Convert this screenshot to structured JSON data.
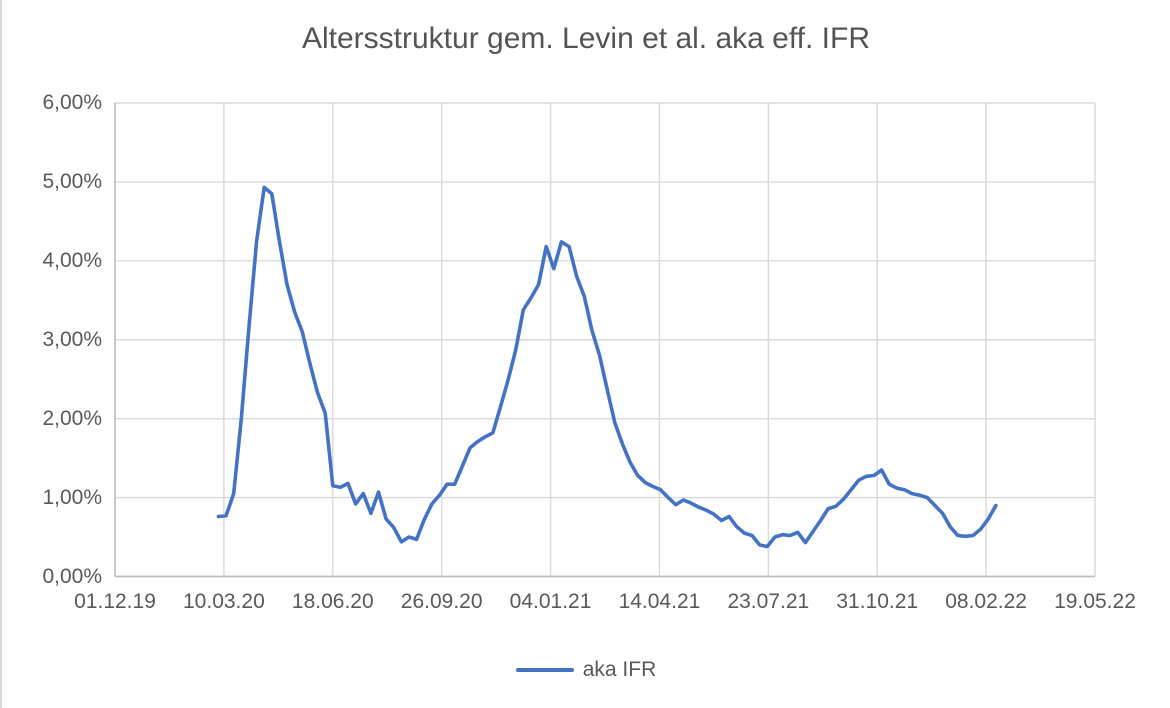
{
  "chart_data": {
    "type": "line",
    "title": "Altersstruktur gem. Levin et al. aka eff. IFR",
    "x_axis": {
      "tick_labels": [
        "01.12.19",
        "10.03.20",
        "18.06.20",
        "26.09.20",
        "04.01.21",
        "14.04.21",
        "23.07.21",
        "31.10.21",
        "08.02.22",
        "19.05.22"
      ],
      "tick_interval_days": 100,
      "range_days": [
        0,
        900
      ],
      "grid": true
    },
    "y_axis": {
      "tick_labels": [
        "6,00%",
        "5,00%",
        "4,00%",
        "3,00%",
        "2,00%",
        "1,00%",
        "0,00%"
      ],
      "tick_interval_pct": 1,
      "range_pct": [
        0,
        6
      ],
      "format": "percent-comma",
      "grid": true
    },
    "legend": {
      "position": "bottom",
      "entries": [
        {
          "label": "aka IFR",
          "color": "#4472C4"
        }
      ]
    },
    "series": [
      {
        "name": "aka IFR",
        "color": "#4472C4",
        "x_start_day": 95,
        "x_step_days": 7,
        "values_pct": [
          0.76,
          0.77,
          1.05,
          2.0,
          3.15,
          4.25,
          4.93,
          4.85,
          4.25,
          3.7,
          3.35,
          3.1,
          2.7,
          2.33,
          2.07,
          1.15,
          1.13,
          1.18,
          0.92,
          1.05,
          0.8,
          1.07,
          0.73,
          0.62,
          0.44,
          0.5,
          0.47,
          0.72,
          0.92,
          1.03,
          1.17,
          1.17,
          1.4,
          1.63,
          1.71,
          1.77,
          1.82,
          2.15,
          2.49,
          2.87,
          3.38,
          3.53,
          3.7,
          4.18,
          3.9,
          4.24,
          4.18,
          3.8,
          3.55,
          3.12,
          2.8,
          2.37,
          1.95,
          1.68,
          1.45,
          1.28,
          1.19,
          1.14,
          1.1,
          1.0,
          0.91,
          0.97,
          0.93,
          0.88,
          0.84,
          0.79,
          0.71,
          0.76,
          0.63,
          0.55,
          0.52,
          0.4,
          0.38,
          0.5,
          0.53,
          0.52,
          0.56,
          0.43,
          0.57,
          0.71,
          0.86,
          0.89,
          0.98,
          1.1,
          1.22,
          1.27,
          1.28,
          1.35,
          1.17,
          1.12,
          1.1,
          1.05,
          1.03,
          1.0,
          0.9,
          0.8,
          0.63,
          0.52,
          0.51,
          0.52,
          0.6,
          0.73,
          0.9
        ]
      }
    ],
    "colors": {
      "line": "#4472C4",
      "gridline": "#D9D9D9",
      "axis_line": "#BFBFBF",
      "text": "#595959"
    }
  }
}
